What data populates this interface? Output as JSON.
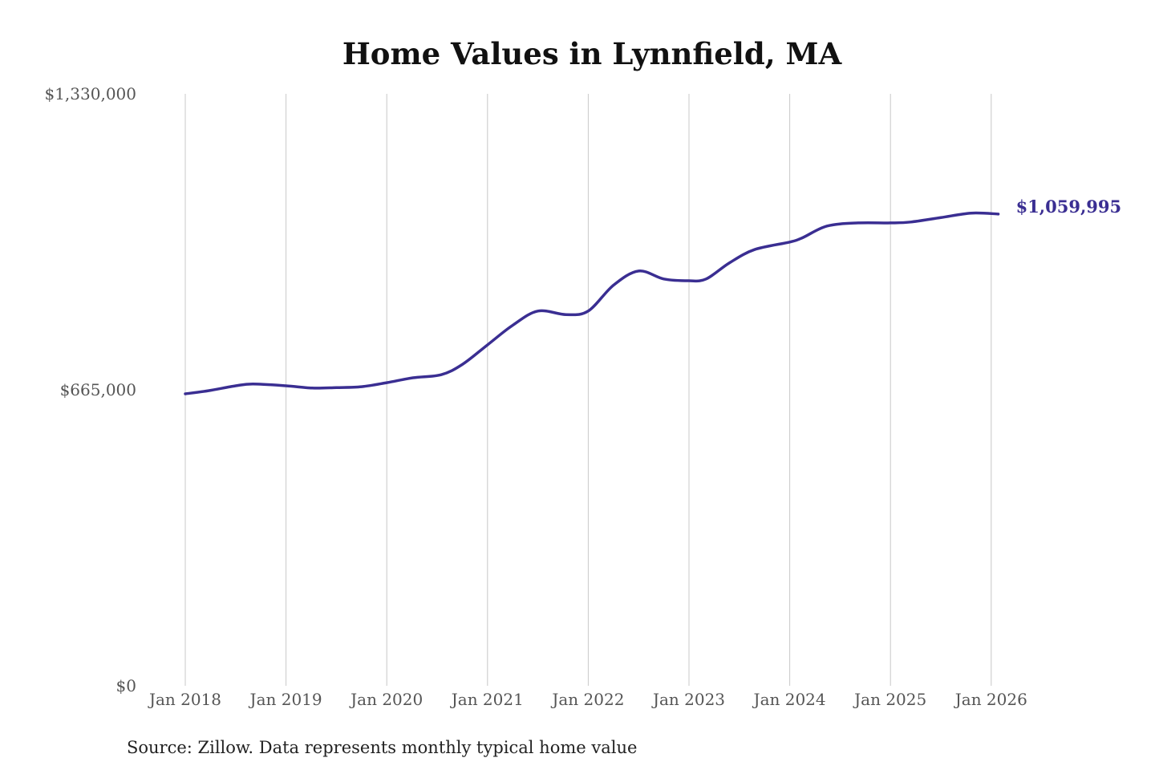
{
  "chart_data": {
    "type": "line",
    "title": "Home Values in Lynnfield, MA",
    "xlabel": "",
    "ylabel": "",
    "ylim": [
      0,
      1330000
    ],
    "xlim": [
      2018.0,
      2026.0
    ],
    "y_ticks": [
      {
        "value": 0,
        "label": "$0"
      },
      {
        "value": 665000,
        "label": "$665,000"
      },
      {
        "value": 1330000,
        "label": "$1,330,000"
      }
    ],
    "x_ticks": [
      {
        "value": 2018,
        "label": "Jan 2018"
      },
      {
        "value": 2019,
        "label": "Jan 2019"
      },
      {
        "value": 2020,
        "label": "Jan 2020"
      },
      {
        "value": 2021,
        "label": "Jan 2021"
      },
      {
        "value": 2022,
        "label": "Jan 2022"
      },
      {
        "value": 2023,
        "label": "Jan 2023"
      },
      {
        "value": 2024,
        "label": "Jan 2024"
      },
      {
        "value": 2025,
        "label": "Jan 2025"
      },
      {
        "value": 2026,
        "label": "Jan 2026"
      }
    ],
    "grid": "vertical",
    "series": [
      {
        "name": "Typical home value",
        "color": "#3a2e92",
        "x": [
          2018.0,
          2018.23,
          2018.5,
          2018.67,
          2019.0,
          2019.26,
          2019.5,
          2019.75,
          2020.0,
          2020.26,
          2020.54,
          2020.75,
          2021.0,
          2021.25,
          2021.5,
          2021.78,
          2022.0,
          2022.25,
          2022.5,
          2022.75,
          2023.0,
          2023.17,
          2023.4,
          2023.65,
          2024.0,
          2024.13,
          2024.37,
          2024.68,
          2025.0,
          2025.2,
          2025.5,
          2025.8,
          2026.07
        ],
        "values": [
          656000,
          663000,
          674000,
          678000,
          674000,
          669000,
          670000,
          672000,
          681000,
          692000,
          699000,
          722000,
          766000,
          810000,
          842000,
          834000,
          842000,
          900000,
          932000,
          914000,
          910000,
          914000,
          950000,
          980000,
          997000,
          1007000,
          1033000,
          1040000,
          1040000,
          1042000,
          1052000,
          1062000,
          1059995
        ]
      }
    ],
    "end_label": "$1,059,995",
    "source": "Source: Zillow. Data represents monthly typical home value"
  }
}
